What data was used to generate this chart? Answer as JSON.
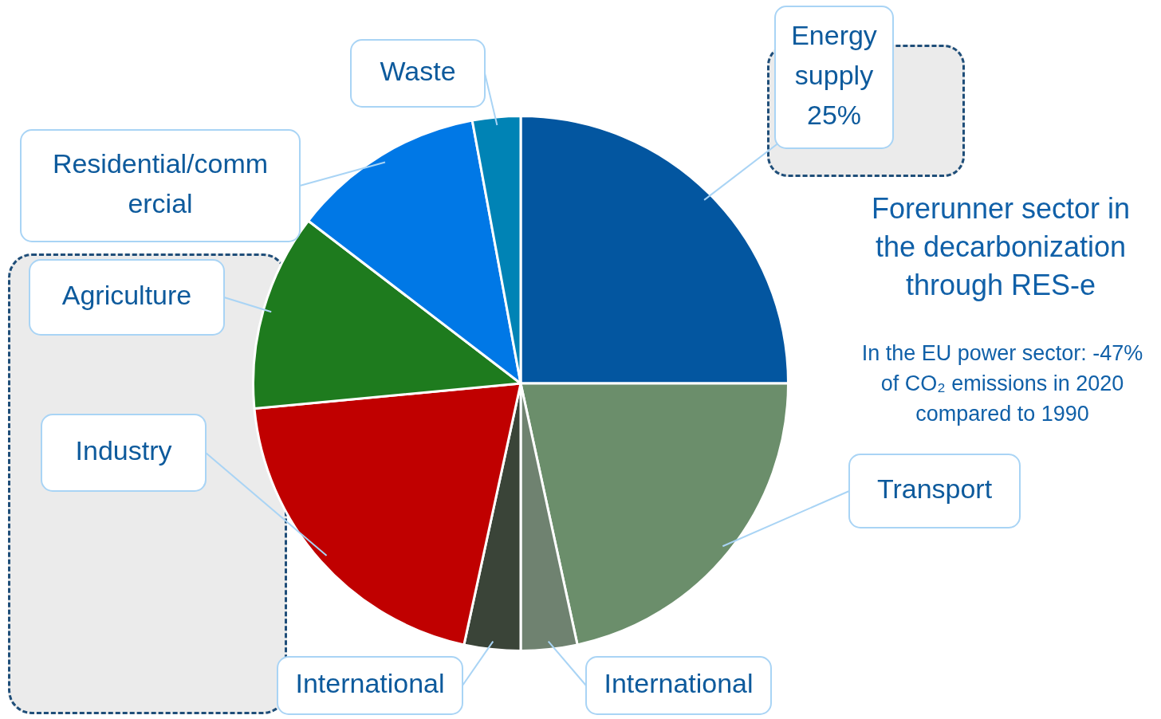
{
  "chart_data": {
    "type": "pie",
    "categories": [
      "Energy supply",
      "Transport",
      "International",
      "International",
      "Industry",
      "Agriculture",
      "Residential/commercial",
      "Waste"
    ],
    "values": [
      25,
      21.6,
      3.4,
      3.4,
      20.1,
      11.9,
      11.7,
      2.9
    ],
    "colors": [
      "#0356a0",
      "#6b8e6b",
      "#6f8270",
      "#3a4438",
      "#c00000",
      "#1e7b1e",
      "#0078e6",
      "#0083b5"
    ],
    "value_labels": [
      "25%",
      null,
      null,
      null,
      null,
      null,
      null,
      null
    ],
    "legend": false,
    "annotations": [
      "Forerunner sector in the decarbonization through RES-e",
      "In the EU power sector: -47% of CO₂ emissions in 2020 compared to 1990"
    ]
  }
}
